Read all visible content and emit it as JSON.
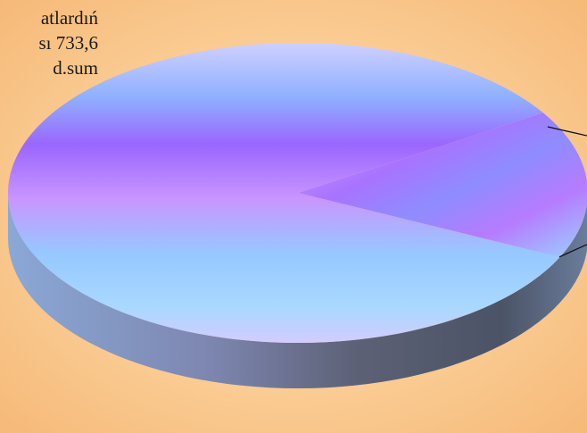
{
  "text_lines": [
    "atlardıń",
    "sı 733,6",
    "d.sum"
  ],
  "chart_data": {
    "type": "pie",
    "style": "3d",
    "values": [
      84,
      16
    ],
    "labels": [
      "",
      ""
    ],
    "colors": {
      "top_light": "#c7c7ff",
      "top_mid": "#9a66ff",
      "top_cyan": "#92d4ff",
      "side_light": "#8aa9d8",
      "side_dark": "#3e4658"
    },
    "leader_lines": 2
  }
}
